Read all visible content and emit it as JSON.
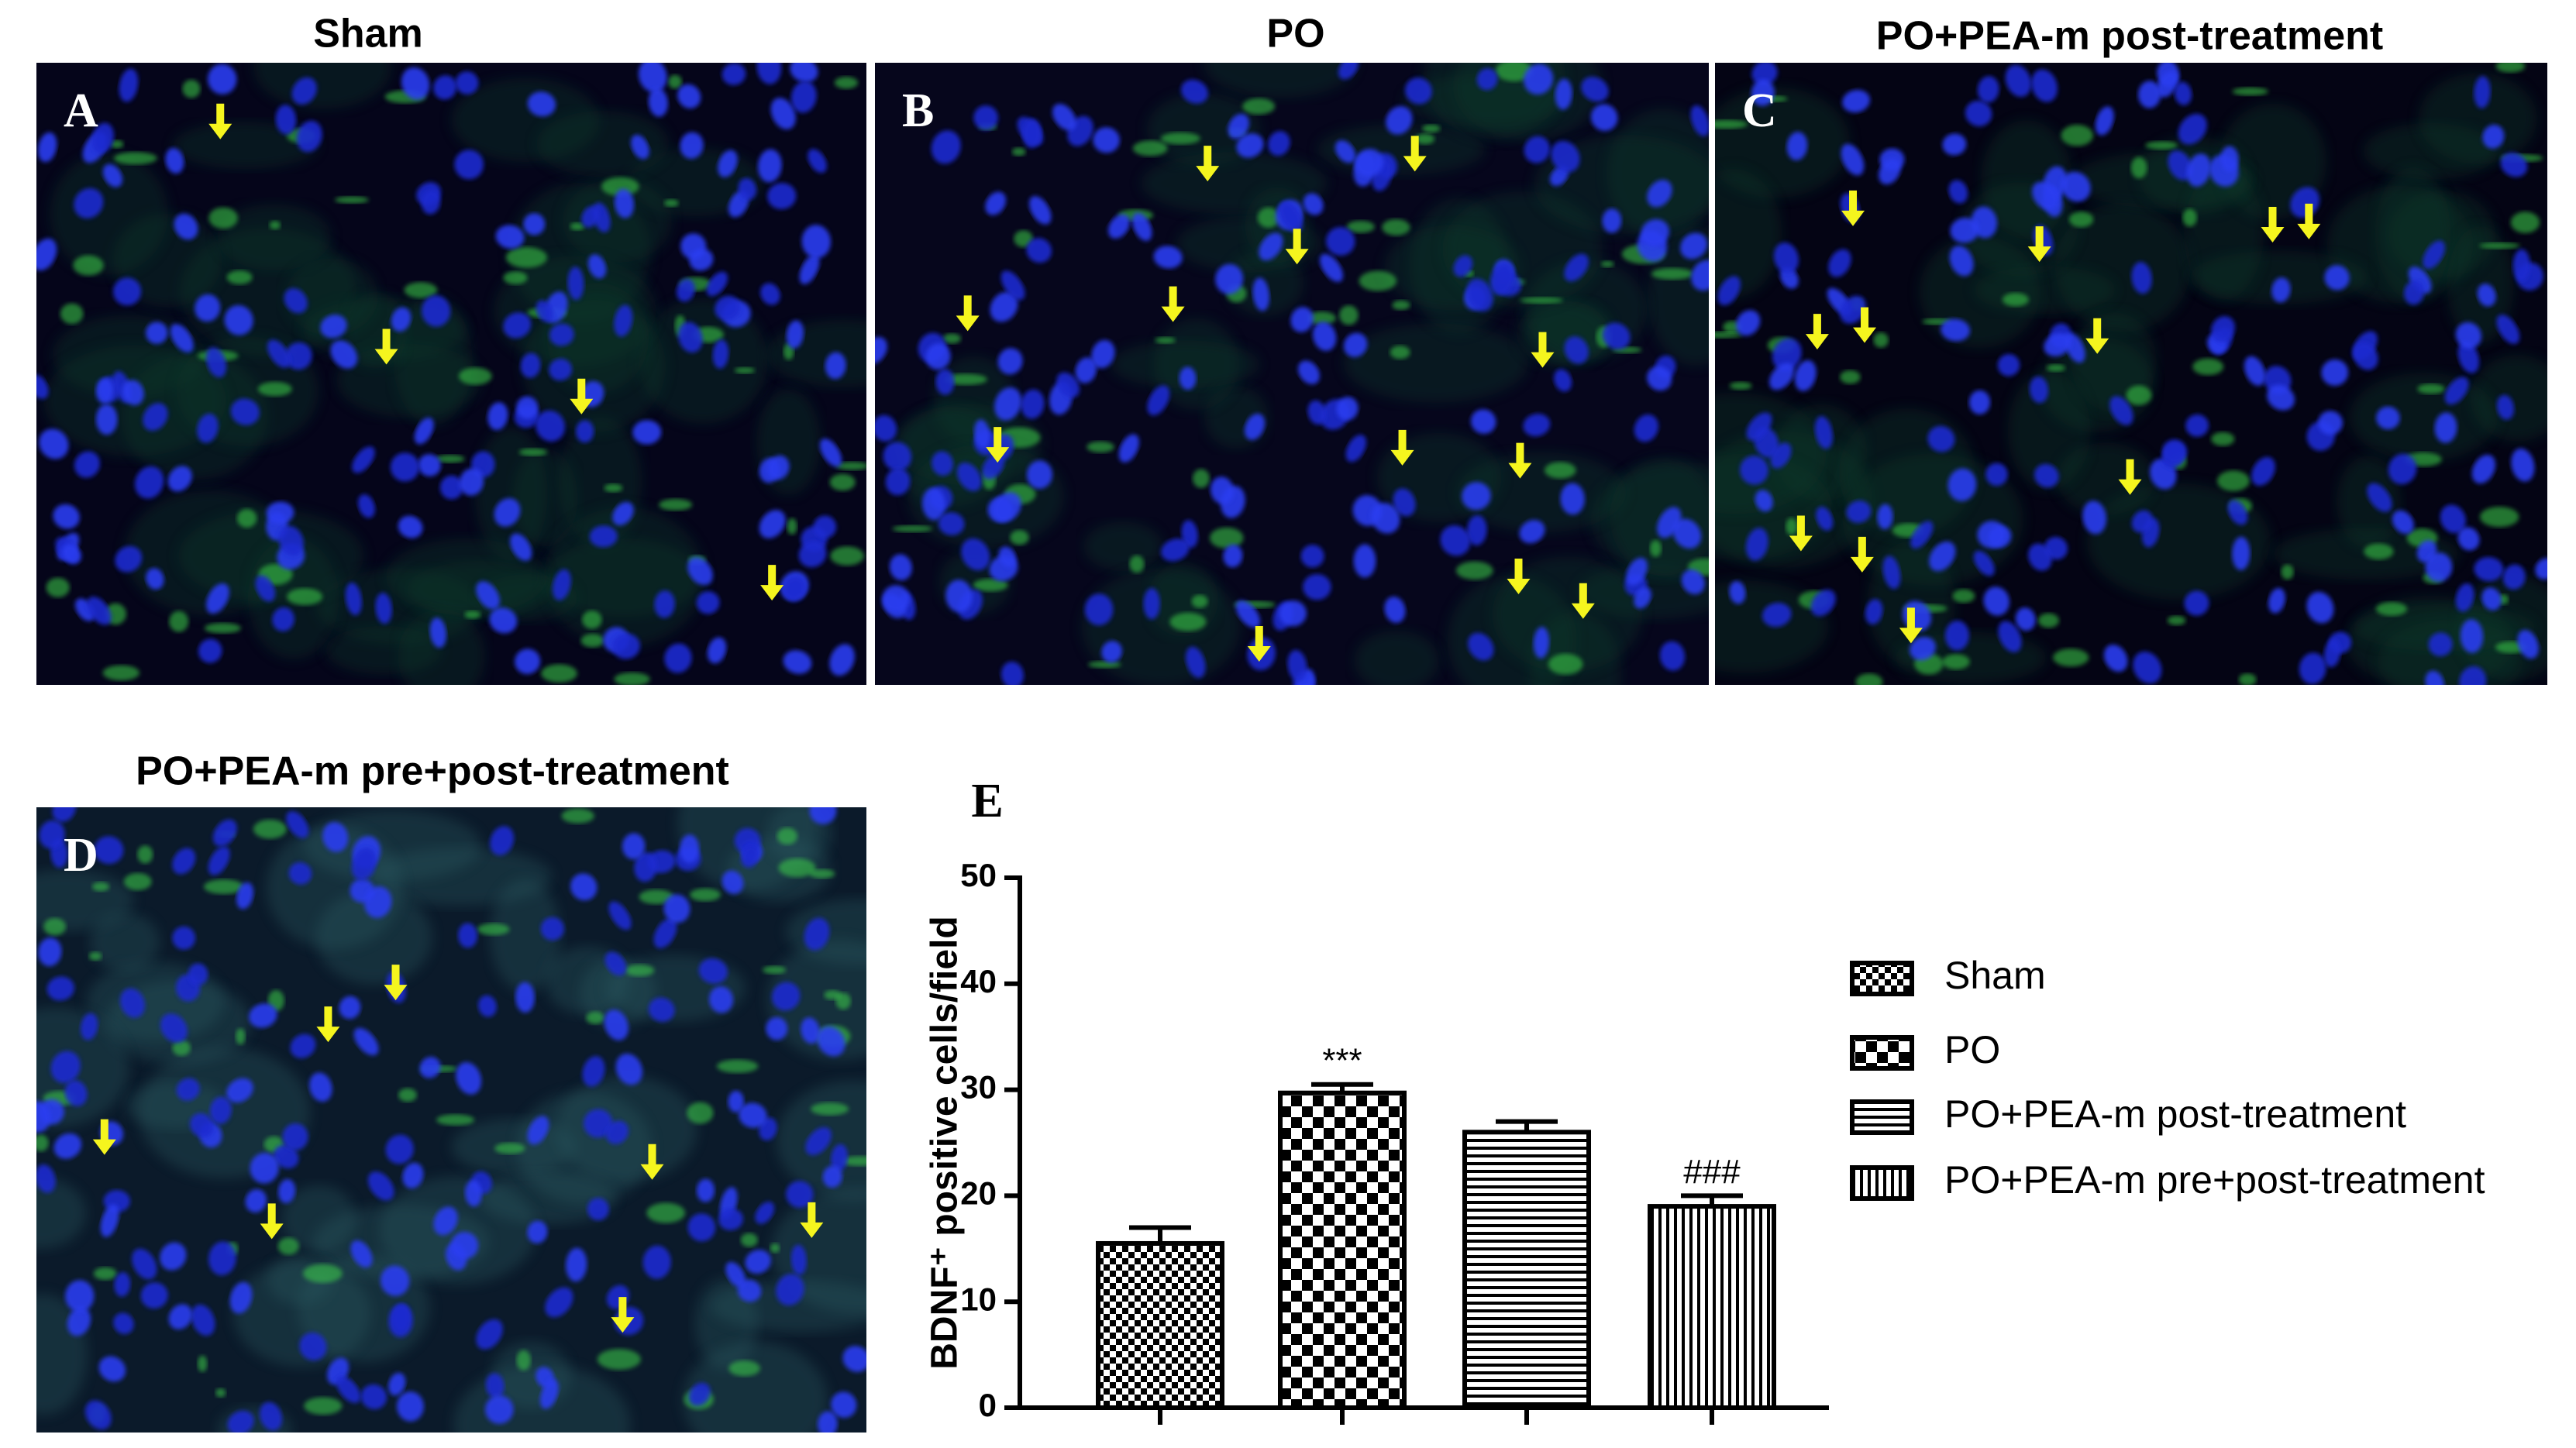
{
  "panels": [
    {
      "letter": "A",
      "title": "Sham"
    },
    {
      "letter": "B",
      "title": "PO"
    },
    {
      "letter": "C",
      "title": "PO+PEA-m post-treatment"
    },
    {
      "letter": "D",
      "title": "PO+PEA-m pre+post-treatment"
    }
  ],
  "chart_data": {
    "type": "bar",
    "panel_label": "E",
    "y_label": "BDNF⁺ positive cells/field",
    "ylim": [
      0,
      50
    ],
    "yticks": [
      0,
      10,
      20,
      30,
      40,
      50
    ],
    "series": [
      {
        "name": "Sham",
        "pattern": "fine-checker",
        "values": [
          15.5
        ],
        "errors": [
          1.5
        ]
      },
      {
        "name": "PO",
        "pattern": "coarse-checker",
        "values": [
          29.7
        ],
        "errors": [
          0.8
        ],
        "annotation": "***"
      },
      {
        "name": "PO+PEA-m post-treatment",
        "pattern": "horizontal-lines",
        "values": [
          26
        ],
        "errors": [
          1.0
        ]
      },
      {
        "name": "PO+PEA-m pre+post-treatment",
        "pattern": "vertical-lines",
        "values": [
          19
        ],
        "errors": [
          1.0
        ],
        "annotation": "###"
      }
    ]
  }
}
